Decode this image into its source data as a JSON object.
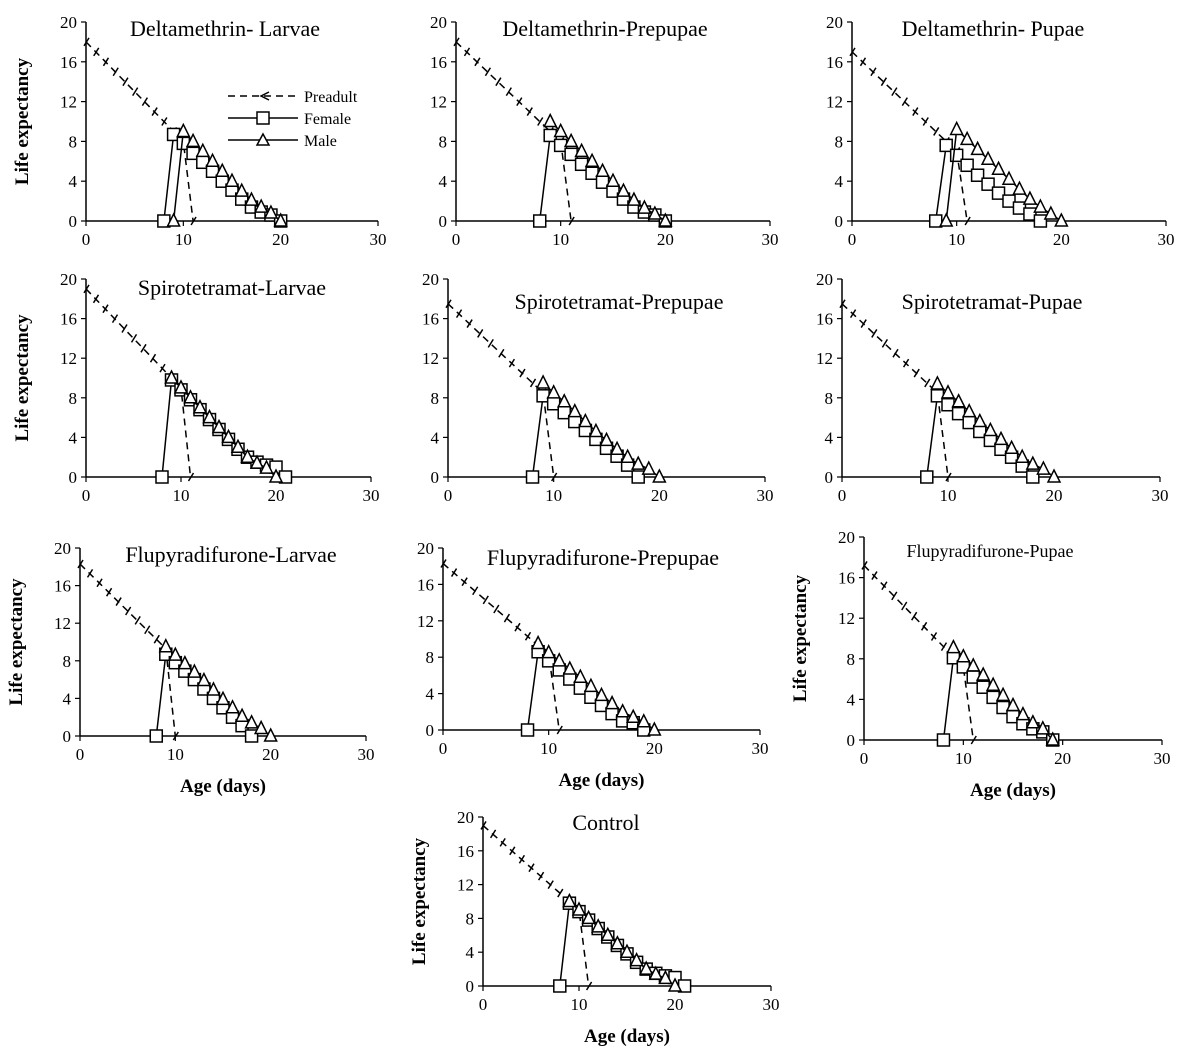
{
  "figure": {
    "legend": {
      "preadult": "Preadult",
      "female": "Female",
      "male": "Male"
    }
  },
  "chart_data": [
    {
      "type": "line",
      "title": "Deltamethrin- Larvae",
      "xlabel": "",
      "ylabel": "Life expectancy",
      "xlim": [
        0,
        30
      ],
      "ylim": [
        0,
        20
      ],
      "xticks": [
        0,
        10,
        20,
        30
      ],
      "yticks": [
        0,
        4,
        8,
        12,
        16,
        20
      ],
      "legend": "top-center",
      "series": [
        {
          "name": "Preadult",
          "x": [
            0,
            1,
            2,
            3,
            4,
            5,
            6,
            7,
            8,
            9,
            10,
            11
          ],
          "y": [
            18,
            17,
            16,
            15,
            14,
            13,
            12,
            11,
            10,
            9,
            8,
            0
          ]
        },
        {
          "name": "Female",
          "x": [
            8,
            9,
            10,
            11,
            12,
            13,
            14,
            15,
            16,
            17,
            18,
            19,
            20
          ],
          "y": [
            0,
            8.7,
            7.8,
            6.8,
            5.9,
            5.0,
            4.0,
            3.1,
            2.2,
            1.4,
            0.9,
            0.6,
            0
          ]
        },
        {
          "name": "Male",
          "x": [
            9,
            10,
            11,
            12,
            13,
            14,
            15,
            16,
            17,
            18,
            19,
            20
          ],
          "y": [
            0,
            9.0,
            8.0,
            7.0,
            6.0,
            5.0,
            4.0,
            3.0,
            2.1,
            1.4,
            0.8,
            0
          ]
        }
      ]
    },
    {
      "type": "line",
      "title": "Deltamethrin-Prepupae",
      "xlabel": "",
      "ylabel": "",
      "xlim": [
        0,
        30
      ],
      "ylim": [
        0,
        20
      ],
      "xticks": [
        0,
        10,
        20,
        30
      ],
      "yticks": [
        0,
        4,
        8,
        12,
        16,
        20
      ],
      "series": [
        {
          "name": "Preadult",
          "x": [
            0,
            1,
            2,
            3,
            4,
            5,
            6,
            7,
            8,
            9,
            10,
            11
          ],
          "y": [
            18,
            17,
            16,
            15,
            14,
            13,
            12,
            11,
            10,
            9,
            8,
            0
          ]
        },
        {
          "name": "Female",
          "x": [
            8,
            9,
            10,
            11,
            12,
            13,
            14,
            15,
            16,
            17,
            18,
            19,
            20
          ],
          "y": [
            0,
            8.6,
            7.6,
            6.7,
            5.7,
            4.8,
            3.9,
            3.0,
            2.2,
            1.4,
            0.9,
            0.6,
            0
          ]
        },
        {
          "name": "Male",
          "x": [
            9,
            10,
            11,
            12,
            13,
            14,
            15,
            16,
            17,
            18,
            19,
            20
          ],
          "y": [
            10.0,
            9.0,
            8.0,
            7.0,
            6.0,
            5.0,
            4.0,
            3.0,
            2.1,
            1.3,
            0.7,
            0
          ]
        }
      ]
    },
    {
      "type": "line",
      "title": "Deltamethrin- Pupae",
      "xlabel": "",
      "ylabel": "",
      "xlim": [
        0,
        30
      ],
      "ylim": [
        0,
        20
      ],
      "xticks": [
        0,
        10,
        20,
        30
      ],
      "yticks": [
        0,
        4,
        8,
        12,
        16,
        20
      ],
      "series": [
        {
          "name": "Preadult",
          "x": [
            0,
            1,
            2,
            3,
            4,
            5,
            6,
            7,
            8,
            9,
            10,
            11
          ],
          "y": [
            17,
            16,
            15,
            14,
            13,
            12,
            11,
            10,
            9,
            8,
            7,
            0
          ]
        },
        {
          "name": "Female",
          "x": [
            8,
            9,
            10,
            11,
            12,
            13,
            14,
            15,
            16,
            17,
            18
          ],
          "y": [
            0,
            7.6,
            6.6,
            5.6,
            4.6,
            3.7,
            2.8,
            2.0,
            1.3,
            0.7,
            0
          ]
        },
        {
          "name": "Male",
          "x": [
            9,
            10,
            11,
            12,
            13,
            14,
            15,
            16,
            17,
            18,
            19,
            20
          ],
          "y": [
            0,
            9.2,
            8.2,
            7.2,
            6.2,
            5.2,
            4.2,
            3.2,
            2.2,
            1.4,
            0.7,
            0
          ]
        }
      ]
    },
    {
      "type": "line",
      "title": "Spirotetramat-Larvae",
      "xlabel": "",
      "ylabel": "Life expectancy",
      "xlim": [
        0,
        30
      ],
      "ylim": [
        0,
        20
      ],
      "xticks": [
        0,
        10,
        20,
        30
      ],
      "yticks": [
        0,
        4,
        8,
        12,
        16,
        20
      ],
      "series": [
        {
          "name": "Preadult",
          "x": [
            0,
            1,
            2,
            3,
            4,
            5,
            6,
            7,
            8,
            9,
            10,
            11
          ],
          "y": [
            19,
            18,
            17,
            16,
            15,
            14,
            13,
            12,
            11,
            10,
            9,
            0
          ]
        },
        {
          "name": "Female",
          "x": [
            8,
            9,
            10,
            11,
            12,
            13,
            14,
            15,
            16,
            17,
            18,
            19,
            20,
            21
          ],
          "y": [
            0,
            9.8,
            8.8,
            7.8,
            6.8,
            5.8,
            4.8,
            3.8,
            2.8,
            2.0,
            1.5,
            1.2,
            1.0,
            0
          ]
        },
        {
          "name": "Male",
          "x": [
            9,
            10,
            11,
            12,
            13,
            14,
            15,
            16,
            17,
            18,
            19,
            20
          ],
          "y": [
            10.0,
            9.0,
            8.0,
            7.0,
            6.0,
            5.0,
            4.0,
            3.0,
            2.0,
            1.4,
            0.9,
            0
          ]
        }
      ]
    },
    {
      "type": "line",
      "title": "Spirotetramat-Prepupae",
      "xlabel": "",
      "ylabel": "",
      "xlim": [
        0,
        30
      ],
      "ylim": [
        0,
        20
      ],
      "xticks": [
        0,
        10,
        20,
        30
      ],
      "yticks": [
        0,
        4,
        8,
        12,
        16,
        20
      ],
      "series": [
        {
          "name": "Preadult",
          "x": [
            0,
            1,
            2,
            3,
            4,
            5,
            6,
            7,
            8,
            9,
            10
          ],
          "y": [
            17.5,
            16.5,
            15.5,
            14.5,
            13.5,
            12.5,
            11.5,
            10.5,
            9.5,
            8.5,
            0
          ]
        },
        {
          "name": "Female",
          "x": [
            8,
            9,
            10,
            11,
            12,
            13,
            14,
            15,
            16,
            17,
            18
          ],
          "y": [
            0,
            8.2,
            7.4,
            6.5,
            5.6,
            4.7,
            3.8,
            2.9,
            2.1,
            1.2,
            0
          ]
        },
        {
          "name": "Male",
          "x": [
            9,
            10,
            11,
            12,
            13,
            14,
            15,
            16,
            17,
            18,
            19,
            20
          ],
          "y": [
            9.5,
            8.5,
            7.6,
            6.6,
            5.6,
            4.6,
            3.7,
            2.8,
            2.0,
            1.3,
            0.8,
            0
          ]
        }
      ]
    },
    {
      "type": "line",
      "title": "Spirotetramat-Pupae",
      "xlabel": "",
      "ylabel": "",
      "xlim": [
        0,
        30
      ],
      "ylim": [
        0,
        20
      ],
      "xticks": [
        0,
        10,
        20,
        30
      ],
      "yticks": [
        0,
        4,
        8,
        12,
        16,
        20
      ],
      "series": [
        {
          "name": "Preadult",
          "x": [
            0,
            1,
            2,
            3,
            4,
            5,
            6,
            7,
            8,
            9,
            10
          ],
          "y": [
            17.5,
            16.5,
            15.5,
            14.5,
            13.5,
            12.5,
            11.5,
            10.5,
            9.5,
            8.5,
            0
          ]
        },
        {
          "name": "Female",
          "x": [
            8,
            9,
            10,
            11,
            12,
            13,
            14,
            15,
            16,
            17,
            18
          ],
          "y": [
            0,
            8.2,
            7.3,
            6.4,
            5.5,
            4.6,
            3.7,
            2.8,
            2.0,
            1.1,
            0
          ]
        },
        {
          "name": "Male",
          "x": [
            9,
            10,
            11,
            12,
            13,
            14,
            15,
            16,
            17,
            18,
            19,
            20
          ],
          "y": [
            9.4,
            8.5,
            7.6,
            6.6,
            5.6,
            4.7,
            3.8,
            2.9,
            2.0,
            1.3,
            0.8,
            0
          ]
        }
      ]
    },
    {
      "type": "line",
      "title": "Flupyradifurone-Larvae",
      "xlabel": "Age (days)",
      "ylabel": "Life expectancy",
      "xlim": [
        0,
        30
      ],
      "ylim": [
        0,
        20
      ],
      "xticks": [
        0,
        10,
        20,
        30
      ],
      "yticks": [
        0,
        4,
        8,
        12,
        16,
        20
      ],
      "series": [
        {
          "name": "Preadult",
          "x": [
            0,
            1,
            2,
            3,
            4,
            5,
            6,
            7,
            8,
            9,
            10
          ],
          "y": [
            18.3,
            17.3,
            16.3,
            15.3,
            14.3,
            13.3,
            12.3,
            11.3,
            10.3,
            9.3,
            0
          ]
        },
        {
          "name": "Female",
          "x": [
            8,
            9,
            10,
            11,
            12,
            13,
            14,
            15,
            16,
            17,
            18
          ],
          "y": [
            0,
            8.7,
            7.8,
            6.9,
            6.0,
            5.0,
            4.0,
            3.0,
            2.0,
            1.1,
            0
          ]
        },
        {
          "name": "Male",
          "x": [
            9,
            10,
            11,
            12,
            13,
            14,
            15,
            16,
            17,
            18,
            19,
            20
          ],
          "y": [
            9.5,
            8.6,
            7.7,
            6.8,
            5.9,
            4.9,
            3.9,
            3.0,
            2.1,
            1.4,
            0.8,
            0
          ]
        }
      ]
    },
    {
      "type": "line",
      "title": "Flupyradifurone-Prepupae",
      "xlabel": "Age (days)",
      "ylabel": "",
      "xlim": [
        0,
        30
      ],
      "ylim": [
        0,
        20
      ],
      "xticks": [
        0,
        10,
        20,
        30
      ],
      "yticks": [
        0,
        4,
        8,
        12,
        16,
        20
      ],
      "series": [
        {
          "name": "Preadult",
          "x": [
            0,
            1,
            2,
            3,
            4,
            5,
            6,
            7,
            8,
            9,
            10,
            11
          ],
          "y": [
            18.3,
            17.3,
            16.3,
            15.3,
            14.3,
            13.3,
            12.3,
            11.3,
            10.3,
            9.3,
            8.3,
            0
          ]
        },
        {
          "name": "Female",
          "x": [
            8,
            9,
            10,
            11,
            12,
            13,
            14,
            15,
            16,
            17,
            18,
            19
          ],
          "y": [
            0,
            8.6,
            7.6,
            6.6,
            5.6,
            4.6,
            3.6,
            2.7,
            1.8,
            1.0,
            0.8,
            0
          ]
        },
        {
          "name": "Male",
          "x": [
            9,
            10,
            11,
            12,
            13,
            14,
            15,
            16,
            17,
            18,
            19,
            20
          ],
          "y": [
            9.5,
            8.5,
            7.6,
            6.7,
            5.8,
            4.8,
            3.8,
            2.9,
            2.0,
            1.4,
            0.9,
            0
          ]
        }
      ]
    },
    {
      "type": "line",
      "title": "Flupyradifurone-Pupae",
      "xlabel": "Age (days)",
      "ylabel": "Life expectancy",
      "xlim": [
        0,
        30
      ],
      "ylim": [
        0,
        20
      ],
      "xticks": [
        0,
        10,
        20,
        30
      ],
      "yticks": [
        0,
        4,
        8,
        12,
        16,
        20
      ],
      "series": [
        {
          "name": "Preadult",
          "x": [
            0,
            1,
            2,
            3,
            4,
            5,
            6,
            7,
            8,
            9,
            10,
            11
          ],
          "y": [
            17.2,
            16.2,
            15.2,
            14.2,
            13.2,
            12.2,
            11.2,
            10.2,
            9.2,
            8.2,
            7.2,
            0
          ]
        },
        {
          "name": "Female",
          "x": [
            8,
            9,
            10,
            11,
            12,
            13,
            14,
            15,
            16,
            17,
            18,
            19
          ],
          "y": [
            0,
            8.1,
            7.2,
            6.2,
            5.2,
            4.2,
            3.2,
            2.3,
            1.6,
            1.1,
            0.8,
            0
          ]
        },
        {
          "name": "Male",
          "x": [
            9,
            10,
            11,
            12,
            13,
            14,
            15,
            16,
            17,
            18,
            19
          ],
          "y": [
            9.1,
            8.2,
            7.3,
            6.4,
            5.4,
            4.4,
            3.4,
            2.5,
            1.7,
            1.1,
            0
          ]
        }
      ]
    },
    {
      "type": "line",
      "title": "Control",
      "xlabel": "Age (days)",
      "ylabel": "Life expectancy",
      "xlim": [
        0,
        30
      ],
      "ylim": [
        0,
        20
      ],
      "xticks": [
        0,
        10,
        20,
        30
      ],
      "yticks": [
        0,
        4,
        8,
        12,
        16,
        20
      ],
      "series": [
        {
          "name": "Preadult",
          "x": [
            0,
            1,
            2,
            3,
            4,
            5,
            6,
            7,
            8,
            9,
            10,
            11
          ],
          "y": [
            19,
            18,
            17,
            16,
            15,
            14,
            13,
            12,
            11,
            10,
            9,
            0
          ]
        },
        {
          "name": "Female",
          "x": [
            8,
            9,
            10,
            11,
            12,
            13,
            14,
            15,
            16,
            17,
            18,
            19,
            20,
            21
          ],
          "y": [
            0,
            9.8,
            8.8,
            7.8,
            6.8,
            5.8,
            4.8,
            3.8,
            2.8,
            2.0,
            1.5,
            1.2,
            1.0,
            0
          ]
        },
        {
          "name": "Male",
          "x": [
            9,
            10,
            11,
            12,
            13,
            14,
            15,
            16,
            17,
            18,
            19,
            20
          ],
          "y": [
            10.0,
            9.0,
            8.0,
            7.0,
            6.0,
            5.0,
            4.0,
            3.0,
            2.0,
            1.4,
            0.9,
            0
          ]
        }
      ]
    }
  ]
}
